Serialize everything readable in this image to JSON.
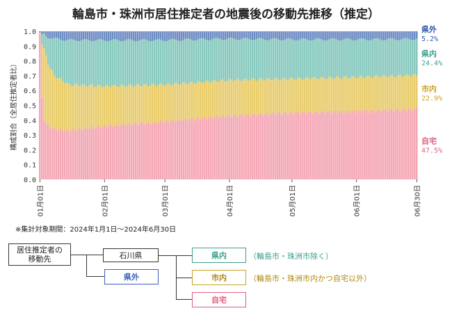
{
  "title": "輪島市・珠洲市居住推定者の地震後の移動先推移（推定）",
  "note": "※集計対象期間：2024年1月1日～2024年6月30日",
  "colors": {
    "home": "#F4A7B5",
    "city": "#E8CC6A",
    "pref": "#87C9BE",
    "out": "#6F8CC4"
  },
  "chart_data": {
    "type": "bar",
    "stacked": true,
    "title": "輪島市・珠洲市居住推定者の地震後の移動先推移（推定）",
    "ylabel": "構成割合（全居住推定者比）",
    "xlabel": "",
    "ylim": [
      0,
      1.0
    ],
    "yticks": [
      "0.0",
      "0.1",
      "0.2",
      "0.3",
      "0.4",
      "0.5",
      "0.6",
      "0.7",
      "0.8",
      "0.9",
      "1.0"
    ],
    "x_range": [
      "2024-01-01",
      "2024-06-30"
    ],
    "xticks": [
      "01月01日",
      "02月01日",
      "03月01日",
      "04月01日",
      "05月01日",
      "06月01日",
      "06月30日"
    ],
    "xtick_dates": [
      "2024-01-01",
      "2024-02-01",
      "2024-03-01",
      "2024-04-01",
      "2024-05-01",
      "2024-06-01",
      "2024-06-30"
    ],
    "keyframes_x": [
      "2024-01-01",
      "2024-01-02",
      "2024-01-03",
      "2024-01-05",
      "2024-01-08",
      "2024-01-15",
      "2024-02-01",
      "2024-03-01",
      "2024-04-01",
      "2024-05-01",
      "2024-06-01",
      "2024-06-30"
    ],
    "series": [
      {
        "name": "自宅",
        "values": [
          0.98,
          0.55,
          0.4,
          0.36,
          0.34,
          0.33,
          0.36,
          0.39,
          0.43,
          0.45,
          0.46,
          0.475
        ]
      },
      {
        "name": "市内",
        "values": [
          0.01,
          0.36,
          0.48,
          0.42,
          0.36,
          0.31,
          0.27,
          0.25,
          0.24,
          0.23,
          0.23,
          0.229
        ]
      },
      {
        "name": "県内",
        "values": [
          0.005,
          0.07,
          0.1,
          0.18,
          0.25,
          0.3,
          0.31,
          0.3,
          0.28,
          0.265,
          0.255,
          0.244
        ]
      },
      {
        "name": "県外",
        "values": [
          0.005,
          0.02,
          0.02,
          0.04,
          0.05,
          0.06,
          0.06,
          0.06,
          0.05,
          0.055,
          0.055,
          0.052
        ]
      }
    ],
    "end_labels": [
      {
        "name": "県外",
        "value": "5.2%"
      },
      {
        "name": "県内",
        "value": "24.4%"
      },
      {
        "name": "市内",
        "value": "22.9%"
      },
      {
        "name": "自宅",
        "value": "47.5%"
      }
    ]
  },
  "legend_tree": {
    "root": "居住推定者の\n移動先",
    "ishikawa": "石川県",
    "out": "県外",
    "pref": "県内",
    "pref_note": "（輪島市・珠洲市除く）",
    "city": "市内",
    "city_note": "（輪島市・珠洲市内かつ自宅以外）",
    "home": "自宅"
  }
}
